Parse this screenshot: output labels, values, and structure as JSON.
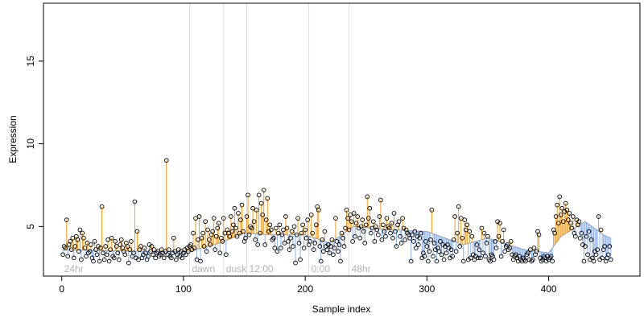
{
  "chart_data": {
    "type": "scatter",
    "title": "",
    "xlabel": "Sample index",
    "ylabel": "Expression",
    "xlim": [
      -15,
      475
    ],
    "ylim": [
      2.0,
      18.5
    ],
    "xticks": [
      0,
      100,
      200,
      300,
      400
    ],
    "yticks": [
      5,
      10,
      15
    ],
    "grid": false,
    "phase_markers": [
      {
        "label": "24hr",
        "x": 0
      },
      {
        "label": "dawn",
        "x": 105
      },
      {
        "label": "dusk",
        "x": 133
      },
      {
        "label": "12:00",
        "x": 152
      },
      {
        "label": "0:00",
        "x": 203
      },
      {
        "label": "48hr",
        "x": 236
      }
    ],
    "colors": {
      "above_fit": "#f0a020",
      "below_fit": "#8ab0e8",
      "fit_line": "#9a9a9a",
      "point_edge": "#000000",
      "divider": "#dddddd"
    },
    "fit_knots": {
      "x": [
        0,
        60,
        105,
        130,
        150,
        170,
        200,
        220,
        240,
        270,
        300,
        330,
        350,
        380,
        400,
        410,
        430,
        445,
        462
      ],
      "y": [
        3.6,
        3.5,
        3.5,
        4.0,
        4.6,
        4.5,
        4.5,
        4.0,
        5.0,
        4.8,
        4.7,
        3.9,
        4.3,
        3.6,
        3.4,
        4.4,
        5.3,
        4.5,
        3.9
      ]
    },
    "points_y": [
      3.3,
      3.8,
      3.7,
      5.4,
      3.2,
      3.9,
      4.1,
      3.6,
      4.3,
      3.1,
      3.8,
      4.4,
      4.2,
      3.5,
      4.8,
      3.0,
      4.6,
      4.3,
      3.7,
      3.2,
      4.0,
      3.4,
      3.5,
      3.9,
      3.1,
      2.9,
      4.1,
      3.6,
      3.3,
      3.8,
      2.9,
      3.7,
      6.2,
      3.4,
      3.0,
      3.8,
      3.3,
      4.2,
      2.9,
      3.6,
      4.3,
      3.2,
      3.1,
      4.1,
      3.8,
      3.4,
      3.0,
      3.9,
      4.2,
      3.7,
      3.5,
      3.3,
      4.0,
      3.8,
      2.8,
      3.6,
      4.1,
      3.2,
      3.4,
      6.5,
      3.1,
      4.7,
      3.0,
      3.6,
      3.8,
      3.1,
      3.3,
      3.7,
      3.4,
      3.0,
      3.2,
      3.9,
      3.5,
      3.8,
      3.3,
      3.6,
      3.1,
      3.4,
      3.5,
      3.2,
      3.3,
      3.6,
      3.4,
      3.1,
      3.5,
      9.0,
      3.3,
      3.6,
      3.2,
      3.1,
      3.4,
      4.3,
      3.5,
      3.0,
      3.3,
      3.6,
      3.2,
      3.5,
      3.1,
      3.4,
      3.6,
      3.3,
      3.7,
      3.5,
      3.8,
      3.9,
      3.6,
      4.6,
      3.7,
      5.5,
      3.0,
      4.2,
      5.6,
      2.9,
      4.3,
      4.6,
      3.8,
      5.3,
      3.5,
      4.8,
      4.2,
      3.9,
      4.5,
      4.7,
      5.5,
      3.6,
      4.4,
      4.9,
      5.2,
      3.4,
      4.3,
      4.1,
      5.5,
      4.6,
      3.3,
      4.8,
      4.6,
      4.4,
      5.6,
      4.7,
      5.1,
      6.1,
      4.9,
      4.4,
      5.8,
      4.6,
      5.4,
      6.3,
      4.7,
      4.1,
      4.3,
      5.6,
      6.9,
      4.5,
      5.0,
      4.9,
      6.1,
      5.3,
      4.2,
      6.0,
      3.9,
      6.9,
      4.6,
      6.4,
      5.7,
      7.2,
      3.9,
      5.4,
      6.7,
      4.7,
      5.1,
      4.8,
      4.2,
      4.3,
      3.7,
      4.9,
      3.5,
      4.6,
      5.1,
      3.7,
      4.5,
      4.8,
      4.0,
      5.6,
      4.9,
      4.1,
      3.6,
      4.3,
      4.7,
      3.8,
      5.0,
      2.8,
      4.5,
      5.5,
      4.0,
      3.0,
      4.6,
      5.1,
      3.7,
      4.8,
      4.3,
      5.4,
      3.9,
      4.1,
      5.7,
      4.6,
      3.6,
      4.0,
      5.1,
      6.2,
      6.0,
      3.8,
      2.9,
      4.2,
      3.5,
      4.7,
      3.8,
      3.6,
      3.9,
      3.4,
      3.8,
      4.2,
      3.3,
      3.7,
      5.5,
      4.1,
      3.5,
      3.9,
      2.9,
      4.6,
      4.3,
      3.8,
      4.9,
      6.0,
      5.5,
      4.8,
      5.7,
      5.3,
      4.1,
      5.8,
      4.4,
      5.2,
      5.6,
      4.9,
      4.3,
      5.0,
      5.4,
      4.7,
      4.0,
      5.1,
      6.8,
      5.5,
      6.1,
      4.6,
      4.9,
      5.3,
      4.1,
      5.0,
      4.8,
      4.5,
      5.6,
      6.6,
      4.2,
      5.1,
      4.7,
      4.4,
      5.5,
      5.0,
      4.9,
      4.6,
      5.2,
      4.3,
      5.8,
      4.7,
      3.8,
      5.1,
      5.3,
      4.4,
      4.0,
      5.5,
      4.9,
      4.2,
      4.8,
      4.6,
      4.5,
      4.3,
      2.9,
      4.5,
      4.1,
      4.7,
      3.7,
      4.4,
      3.9,
      4.3,
      4.6,
      3.1,
      3.4,
      3.2,
      4.1,
      3.8,
      2.9,
      3.5,
      4.2,
      6.0,
      3.2,
      4.0,
      3.6,
      2.9,
      3.7,
      3.5,
      4.1,
      3.3,
      3.9,
      3.0,
      3.8,
      3.4,
      3.9,
      3.7,
      3.1,
      3.6,
      3.2,
      4.2,
      5.6,
      3.5,
      4.6,
      6.2,
      3.8,
      5.5,
      4.3,
      2.9,
      5.4,
      4.8,
      5.1,
      3.0,
      4.7,
      3.1,
      4.4,
      3.3,
      3.0,
      3.2,
      3.9,
      3.1,
      3.6,
      3.1,
      4.9,
      3.4,
      4.6,
      3.2,
      4.0,
      4.4,
      3.0,
      2.9,
      3.3,
      3.2,
      3.0,
      4.1,
      3.7,
      5.3,
      4.4,
      5.2,
      3.2,
      4.1,
      4.8,
      3.5,
      3.8,
      3.9,
      3.6,
      3.7,
      4.1,
      3.3,
      3.0,
      3.2,
      3.3,
      3.1,
      2.9,
      3.2,
      3.0,
      2.9,
      3.1,
      3.0,
      2.9,
      3.3,
      3.4,
      3.0,
      3.6,
      2.9,
      3.0,
      3.7,
      3.3,
      3.5,
      4.7,
      4.5,
      3.1,
      2.9,
      3.0,
      3.2,
      3.1,
      2.9,
      3.2,
      3.0,
      3.1,
      3.2,
      2.9,
      4.8,
      4.6,
      5.6,
      6.3,
      5.2,
      6.8,
      5.7,
      6.1,
      5.3,
      5.9,
      6.4,
      6.0,
      5.4,
      5.8,
      5.2,
      4.9,
      5.6,
      4.6,
      4.4,
      5.4,
      5.1,
      5.3,
      4.3,
      4.6,
      3.9,
      2.9,
      3.8,
      4.4,
      3.3,
      4.7,
      3.0,
      4.2,
      3.1,
      2.9,
      3.5,
      3.3,
      3.6,
      5.6,
      3.0,
      4.8,
      3.1,
      3.6,
      3.8,
      2.9,
      3.1,
      3.3,
      3.8,
      3.0
    ]
  }
}
